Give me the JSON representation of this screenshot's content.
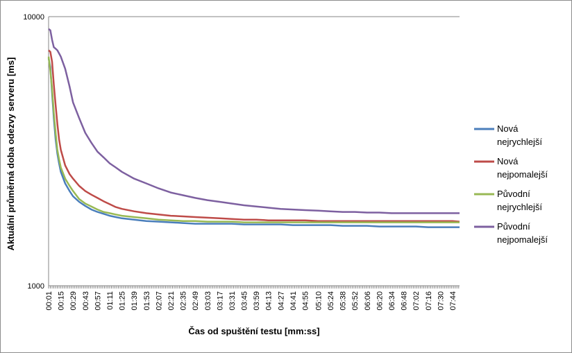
{
  "chart_data": {
    "type": "line",
    "title": "",
    "xlabel": "Čas od spuštění testu [mm:ss]",
    "ylabel": "Aktuální průměrná doba odezvy serveru [ms]",
    "y_scale": "log",
    "ylim": [
      1000,
      10000
    ],
    "y_ticks": [
      "1000",
      "10000"
    ],
    "x_tick_labels": [
      "00:01",
      "00:15",
      "00:29",
      "00:43",
      "00:57",
      "01:11",
      "01:25",
      "01:39",
      "01:53",
      "02:07",
      "02:21",
      "02:35",
      "02:49",
      "03:03",
      "03:17",
      "03:31",
      "03:45",
      "03:59",
      "04:13",
      "04:27",
      "04:41",
      "04:55",
      "05:10",
      "05:24",
      "05:38",
      "05:52",
      "06:06",
      "06:20",
      "06:34",
      "06:48",
      "07:02",
      "07:16",
      "07:30",
      "07:44"
    ],
    "grid": "horizontal major only",
    "legend": "right",
    "x": [
      "00:01",
      "00:03",
      "00:05",
      "00:07",
      "00:09",
      "00:11",
      "00:13",
      "00:15",
      "00:20",
      "00:25",
      "00:29",
      "00:36",
      "00:43",
      "00:50",
      "00:57",
      "01:04",
      "01:11",
      "01:18",
      "01:25",
      "01:39",
      "01:53",
      "02:07",
      "02:21",
      "02:35",
      "02:49",
      "03:03",
      "03:17",
      "03:31",
      "03:45",
      "03:59",
      "04:13",
      "04:27",
      "04:41",
      "04:55",
      "05:10",
      "05:24",
      "05:38",
      "05:52",
      "06:06",
      "06:20",
      "06:34",
      "06:48",
      "07:02",
      "07:16",
      "07:30",
      "07:44",
      "07:52"
    ],
    "series": [
      {
        "name": "Nová nejrychlejší",
        "color": "#4a7ebb",
        "values": [
          7000,
          6500,
          5200,
          4200,
          3500,
          3100,
          2850,
          2650,
          2400,
          2250,
          2150,
          2050,
          1980,
          1920,
          1880,
          1850,
          1820,
          1800,
          1780,
          1760,
          1740,
          1730,
          1720,
          1710,
          1700,
          1700,
          1700,
          1700,
          1690,
          1690,
          1690,
          1690,
          1680,
          1680,
          1680,
          1680,
          1670,
          1670,
          1670,
          1660,
          1660,
          1660,
          1660,
          1650,
          1650,
          1650,
          1650
        ]
      },
      {
        "name": "Nová nejpomalejší",
        "color": "#be4b48",
        "values": [
          7500,
          7400,
          6800,
          5600,
          4700,
          4000,
          3500,
          3200,
          2800,
          2600,
          2500,
          2350,
          2250,
          2180,
          2120,
          2060,
          2010,
          1960,
          1930,
          1890,
          1860,
          1840,
          1820,
          1810,
          1800,
          1790,
          1780,
          1770,
          1760,
          1760,
          1750,
          1750,
          1750,
          1750,
          1740,
          1740,
          1740,
          1740,
          1740,
          1740,
          1740,
          1740,
          1740,
          1740,
          1740,
          1740,
          1730
        ]
      },
      {
        "name": "Původní nejrychlejší",
        "color": "#98b954",
        "values": [
          7100,
          6300,
          5400,
          4400,
          3700,
          3200,
          2950,
          2750,
          2500,
          2350,
          2250,
          2100,
          2020,
          1970,
          1920,
          1880,
          1860,
          1840,
          1820,
          1800,
          1780,
          1760,
          1750,
          1740,
          1740,
          1730,
          1730,
          1730,
          1720,
          1720,
          1720,
          1720,
          1720,
          1720,
          1720,
          1720,
          1720,
          1720,
          1720,
          1720,
          1720,
          1720,
          1720,
          1720,
          1720,
          1720,
          1720
        ]
      },
      {
        "name": "Původní nejpomalejší",
        "color": "#7d60a0",
        "values": [
          9000,
          8900,
          8200,
          7700,
          7600,
          7500,
          7300,
          7100,
          6400,
          5500,
          4800,
          4200,
          3700,
          3400,
          3150,
          3000,
          2850,
          2750,
          2650,
          2500,
          2400,
          2300,
          2220,
          2170,
          2120,
          2080,
          2050,
          2020,
          1990,
          1970,
          1950,
          1930,
          1920,
          1910,
          1900,
          1890,
          1880,
          1880,
          1870,
          1870,
          1860,
          1860,
          1860,
          1860,
          1860,
          1860,
          1860
        ]
      }
    ]
  }
}
